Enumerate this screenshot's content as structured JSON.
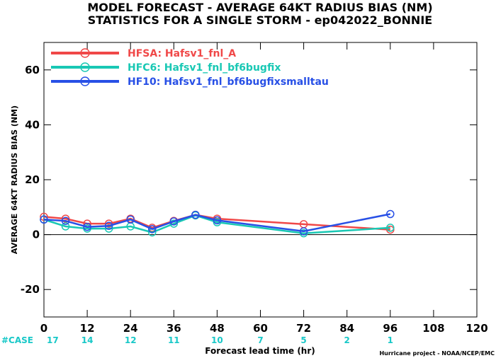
{
  "chart_data": {
    "type": "line",
    "title": "MODEL FORECAST - AVERAGE 64KT RADIUS BIAS (NM)",
    "subtitle": "STATISTICS FOR A SINGLE STORM - ep042022_BONNIE",
    "xlabel": "Forecast lead time (hr)",
    "ylabel": "AVERAGE 64KT RADIUS BIAS (NM)",
    "xlim": [
      0,
      120
    ],
    "ylim": [
      -30,
      70
    ],
    "x_ticks": [
      0,
      12,
      24,
      36,
      48,
      60,
      72,
      84,
      96,
      108,
      120
    ],
    "y_ticks": [
      -20,
      0,
      20,
      40,
      60
    ],
    "zero_line": true,
    "legend_position": "top-left",
    "case_label": "#CASE",
    "cases": [
      {
        "x": 0,
        "n": "17"
      },
      {
        "x": 12,
        "n": "14"
      },
      {
        "x": 24,
        "n": "12"
      },
      {
        "x": 36,
        "n": "11"
      },
      {
        "x": 48,
        "n": "10"
      },
      {
        "x": 60,
        "n": "7"
      },
      {
        "x": 72,
        "n": "5"
      },
      {
        "x": 84,
        "n": "2"
      },
      {
        "x": 96,
        "n": "1"
      }
    ],
    "credit": "Hurricane project - NOAA/NCEP/EMC",
    "series": [
      {
        "name": "HFSA: Hafsv1_fnl_A",
        "color": "#f04848",
        "x": [
          0,
          6,
          12,
          18,
          24,
          30,
          36,
          42,
          48,
          72,
          96
        ],
        "y": [
          6.5,
          5.8,
          4.0,
          4.0,
          5.8,
          2.5,
          5.0,
          7.2,
          5.8,
          3.8,
          1.8
        ]
      },
      {
        "name": "HFC6: Hafsv1_fnl_bf6bugfix",
        "color": "#19c8b4",
        "x": [
          0,
          6,
          12,
          18,
          24,
          30,
          36,
          42,
          48,
          72,
          96
        ],
        "y": [
          5.5,
          3.0,
          2.2,
          2.2,
          3.0,
          0.8,
          4.0,
          7.0,
          4.5,
          0.5,
          2.5
        ]
      },
      {
        "name": "HF10: Hafsv1_fnl_bf6bugfixsmalltau",
        "color": "#2850e6",
        "x": [
          0,
          6,
          12,
          18,
          24,
          30,
          36,
          42,
          48,
          72,
          96
        ],
        "y": [
          5.5,
          5.0,
          2.8,
          3.2,
          5.5,
          2.0,
          4.8,
          7.2,
          5.2,
          1.2,
          7.5
        ]
      }
    ]
  }
}
